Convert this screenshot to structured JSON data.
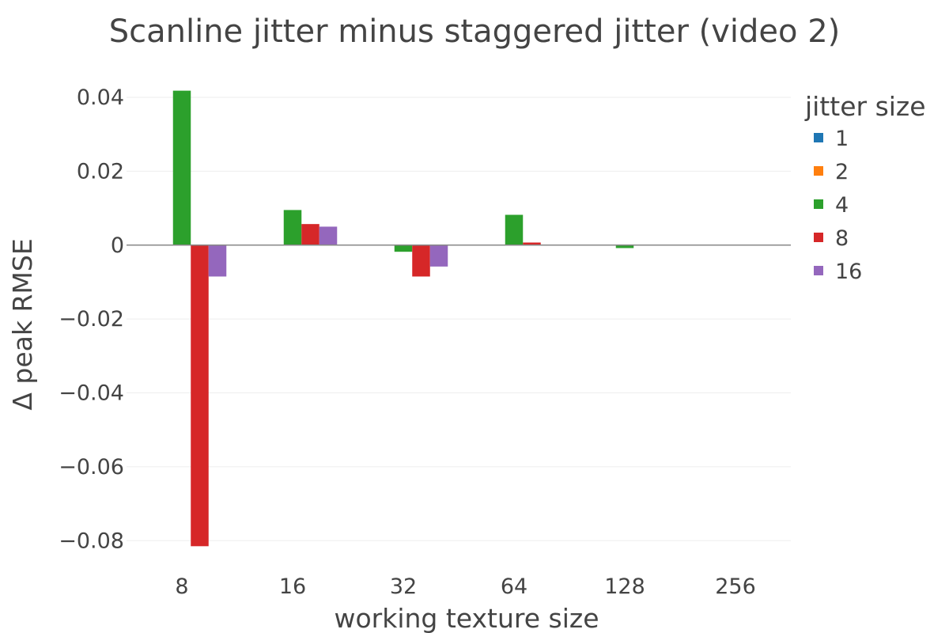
{
  "chart_data": {
    "type": "bar",
    "title": "Scanline jitter minus staggered jitter (video 2)",
    "xlabel": "working texture size",
    "ylabel": "Δ peak RMSE",
    "categories": [
      "8",
      "16",
      "32",
      "64",
      "128",
      "256"
    ],
    "ylim": [
      -0.09,
      0.046
    ],
    "yticks": [
      0.04,
      0.02,
      0,
      -0.02,
      -0.04,
      -0.06,
      -0.08
    ],
    "ytick_labels": [
      "0.04",
      "0.02",
      "0",
      "−0.02",
      "−0.04",
      "−0.06",
      "−0.08"
    ],
    "grid": true,
    "legend": {
      "title": "jitter size",
      "position": "right"
    },
    "series": [
      {
        "name": "1",
        "color": "#1f77b4",
        "values": [
          0,
          0,
          0,
          0,
          0,
          0
        ]
      },
      {
        "name": "2",
        "color": "#ff7f0e",
        "values": [
          0,
          0,
          0,
          0,
          0,
          0
        ]
      },
      {
        "name": "4",
        "color": "#2ca02c",
        "values": [
          0.0418,
          0.0095,
          -0.0018,
          0.0082,
          -0.0008,
          0
        ]
      },
      {
        "name": "8",
        "color": "#d62728",
        "values": [
          -0.0815,
          0.0057,
          -0.0085,
          0.0007,
          0,
          0
        ]
      },
      {
        "name": "16",
        "color": "#9467bd",
        "values": [
          -0.0085,
          0.005,
          -0.0058,
          0,
          0,
          0
        ]
      }
    ]
  }
}
